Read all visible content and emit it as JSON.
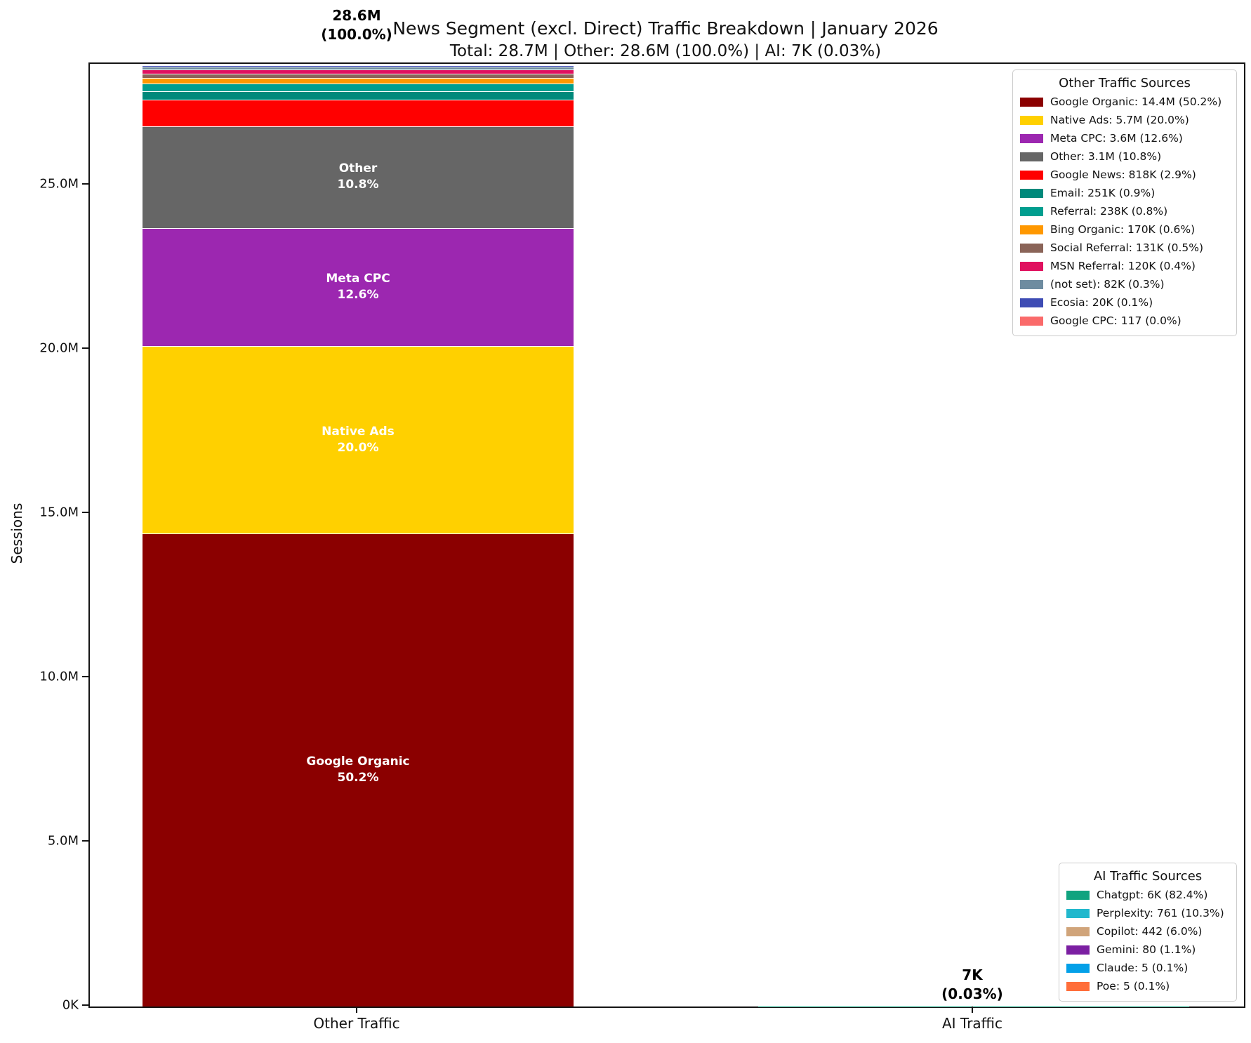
{
  "title": "News Segment (excl. Direct) Traffic Breakdown | January 2026",
  "subtitle": "Total: 28.7M | Other: 28.6M (100.0%) | AI: 7K (0.03%)",
  "ylabel": "Sessions",
  "chart_data": {
    "type": "bar",
    "stacked": true,
    "categories": [
      "Other Traffic",
      "AI Traffic"
    ],
    "ylim": [
      0,
      28700000
    ],
    "grid": false,
    "y_ticks": [
      {
        "value": 0,
        "label": "0K"
      },
      {
        "value": 5000000,
        "label": "5.0M"
      },
      {
        "value": 10000000,
        "label": "10.0M"
      },
      {
        "value": 15000000,
        "label": "15.0M"
      },
      {
        "value": 20000000,
        "label": "20.0M"
      },
      {
        "value": 25000000,
        "label": "25.0M"
      }
    ],
    "bars": [
      {
        "category": "Other Traffic",
        "total_label": "28.6M",
        "total_pct_label": "(100.0%)",
        "segments": [
          {
            "name": "Google Organic",
            "value": 14400000,
            "amount": "14.4M",
            "pct": "50.2%",
            "color": "#8B0000",
            "show_label": true
          },
          {
            "name": "Native Ads",
            "value": 5700000,
            "amount": "5.7M",
            "pct": "20.0%",
            "color": "#FFD000",
            "show_label": true
          },
          {
            "name": "Meta CPC",
            "value": 3600000,
            "amount": "3.6M",
            "pct": "12.6%",
            "color": "#9C27B0",
            "show_label": true
          },
          {
            "name": "Other",
            "value": 3100000,
            "amount": "3.1M",
            "pct": "10.8%",
            "color": "#666666",
            "show_label": true
          },
          {
            "name": "Google News",
            "value": 818000,
            "amount": "818K",
            "pct": "2.9%",
            "color": "#FF0000",
            "show_label": false
          },
          {
            "name": "Email",
            "value": 251000,
            "amount": "251K",
            "pct": "0.9%",
            "color": "#00897B",
            "show_label": false
          },
          {
            "name": "Referral",
            "value": 238000,
            "amount": "238K",
            "pct": "0.8%",
            "color": "#009E8F",
            "show_label": false
          },
          {
            "name": "Bing Organic",
            "value": 170000,
            "amount": "170K",
            "pct": "0.6%",
            "color": "#FF9800",
            "show_label": false
          },
          {
            "name": "Social Referral",
            "value": 131000,
            "amount": "131K",
            "pct": "0.5%",
            "color": "#8A6458",
            "show_label": false
          },
          {
            "name": "MSN Referral",
            "value": 120000,
            "amount": "120K",
            "pct": "0.4%",
            "color": "#E0115F",
            "show_label": false
          },
          {
            "name": "(not set)",
            "value": 82000,
            "amount": "82K",
            "pct": "0.3%",
            "color": "#6E8CA0",
            "show_label": false
          },
          {
            "name": "Ecosia",
            "value": 20000,
            "amount": "20K",
            "pct": "0.1%",
            "color": "#3E4CB4",
            "show_label": false
          },
          {
            "name": "Google CPC",
            "value": 117,
            "amount": "117",
            "pct": "0.0%",
            "color": "#FA6A6A",
            "show_label": false
          }
        ]
      },
      {
        "category": "AI Traffic",
        "total_label": "7K",
        "total_pct_label": "(0.03%)",
        "segments": [
          {
            "name": "Chatgpt",
            "value": 6000,
            "amount": "6K",
            "pct": "82.4%",
            "color": "#10A37F",
            "show_label": false
          },
          {
            "name": "Perplexity",
            "value": 761,
            "amount": "761",
            "pct": "10.3%",
            "color": "#22B8CD",
            "show_label": false
          },
          {
            "name": "Copilot",
            "value": 442,
            "amount": "442",
            "pct": "6.0%",
            "color": "#D0A47A",
            "show_label": false
          },
          {
            "name": "Gemini",
            "value": 80,
            "amount": "80",
            "pct": "1.1%",
            "color": "#7B1FA2",
            "show_label": false
          },
          {
            "name": "Claude",
            "value": 5,
            "amount": "5",
            "pct": "0.1%",
            "color": "#03A0E8",
            "show_label": false
          },
          {
            "name": "Poe",
            "value": 5,
            "amount": "5",
            "pct": "0.1%",
            "color": "#FF6E3A",
            "show_label": false
          }
        ]
      }
    ],
    "legends": [
      {
        "title": "Other Traffic Sources",
        "bar_index": 0,
        "position": "upper-right"
      },
      {
        "title": "AI Traffic Sources",
        "bar_index": 1,
        "position": "lower-right"
      }
    ]
  }
}
